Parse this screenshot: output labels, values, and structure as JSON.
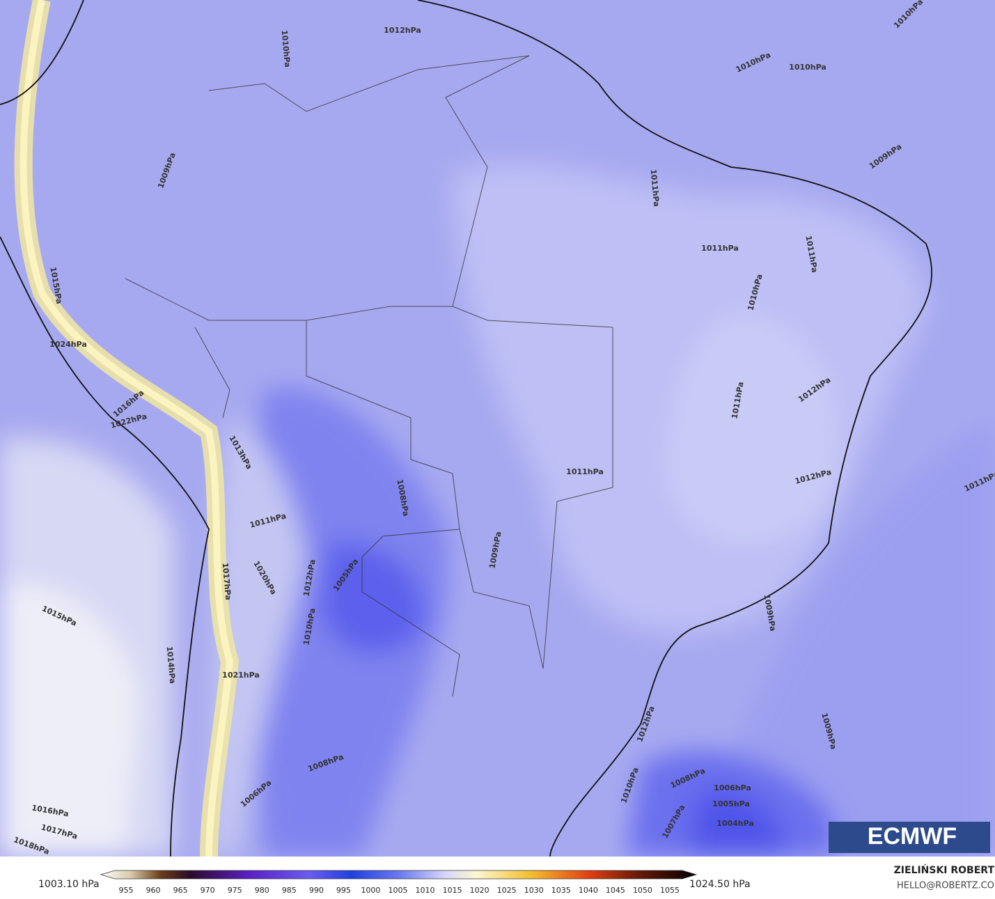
{
  "map": {
    "contour_labels": [
      "1010hPa",
      "1010hPa",
      "1012hPa",
      "1010hPa",
      "1010hPa",
      "1009hPa",
      "1009hPa",
      "1011hPa",
      "1011hPa",
      "1010hPa",
      "1011hPa",
      "1012hPa",
      "1011hPa",
      "1012hPa",
      "1011hPa",
      "1011hPa",
      "1008hPa",
      "1009hPa",
      "1005hPa",
      "1011hPa",
      "1012hPa",
      "1015hPa",
      "1014hPa",
      "1016hPa",
      "1017hPa",
      "1018hPa",
      "1012hPa",
      "1009hPa",
      "1010hPa",
      "1008hPa",
      "1006hPa",
      "1005hPa",
      "1004hPa",
      "1007hPa",
      "1008hPa",
      "1006hPa",
      "1010hPa",
      "1021hPa",
      "1022hPa",
      "1020hPa",
      "1024hPa",
      "1015hPa",
      "1009hPa",
      "1013hPa",
      "1016hPa",
      "1017hPa"
    ],
    "colorbar": {
      "min_label": "1003.10 hPa",
      "max_label": "1024.50 hPa",
      "ticks": [
        "955",
        "960",
        "965",
        "970",
        "975",
        "980",
        "985",
        "990",
        "995",
        "1000",
        "1005",
        "1010",
        "1015",
        "1020",
        "1025",
        "1030",
        "1035",
        "1040",
        "1045",
        "1050",
        "1055"
      ]
    },
    "logo": "ECMWF",
    "credit": {
      "name": "ZIELIŃSKI ROBERT",
      "contact": "HELLO@ROBERTZ.CO"
    }
  }
}
